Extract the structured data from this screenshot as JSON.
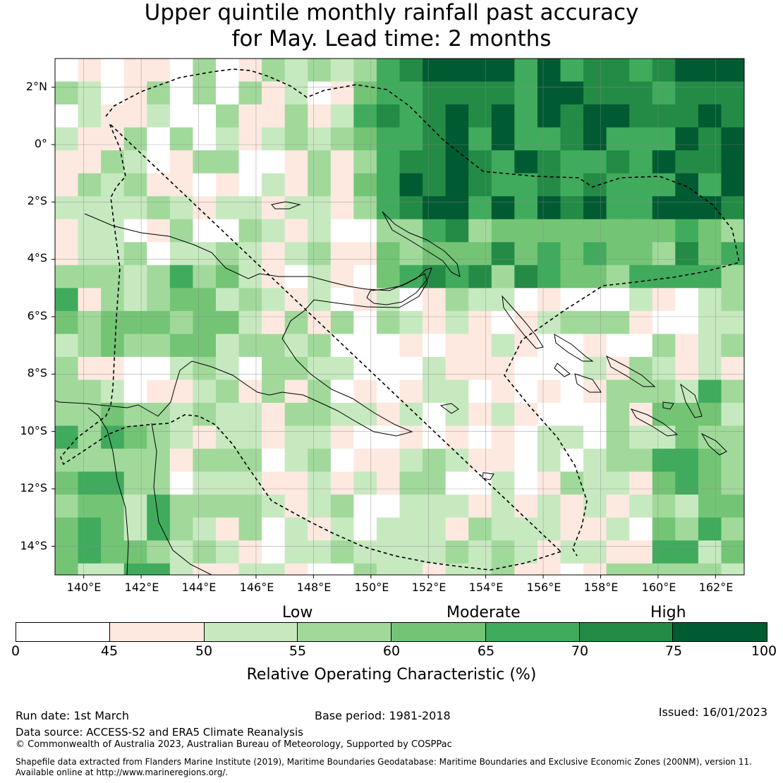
{
  "title": {
    "line1": "Upper quintile monthly rainfall past accuracy",
    "line2": "for May. Lead time: 2 months"
  },
  "map": {
    "lat_labels": [
      "2°N",
      "0°",
      "2°S",
      "4°S",
      "6°S",
      "8°S",
      "10°S",
      "12°S",
      "14°S"
    ],
    "lon_labels": [
      "140°E",
      "142°E",
      "144°E",
      "146°E",
      "148°E",
      "150°E",
      "152°E",
      "154°E",
      "156°E",
      "158°E",
      "160°E",
      "162°E"
    ],
    "lon_range": [
      139,
      163
    ],
    "lat_range": [
      -15,
      3
    ],
    "grid_resolution_deg": 0.8,
    "category_colors": [
      "#ffffff",
      "#fde9e0",
      "#c7e9c0",
      "#a1d99b",
      "#74c476",
      "#41ab5d",
      "#238b45",
      "#005a32"
    ]
  },
  "legend": {
    "categories": [
      "Low",
      "Moderate",
      "High"
    ],
    "ticks": [
      "0",
      "45",
      "50",
      "55",
      "60",
      "65",
      "70",
      "75",
      "100"
    ],
    "label": "Relative Operating Characteristic (%)"
  },
  "footer": {
    "run_date": "Run date: 1st March",
    "base_period": "Base period: 1981-2018",
    "issued": "Issued: 16/01/2023",
    "data_source": "Data source: ACCESS-S2 and ERA5 Climate Reanalysis",
    "copyright": "© Commonwealth of Australia 2023, Australian Bureau of Meteorology, Supported by COSPPac",
    "shapefile_line1": "Shapefile data extracted from Flanders Marine Institute (2019), Maritime Boundaries Geodatabase: Maritime Boundaries and Exclusive Economic Zones (200NM), version 11.",
    "shapefile_line2": "Available online at http://www.marineregions.org/."
  }
}
